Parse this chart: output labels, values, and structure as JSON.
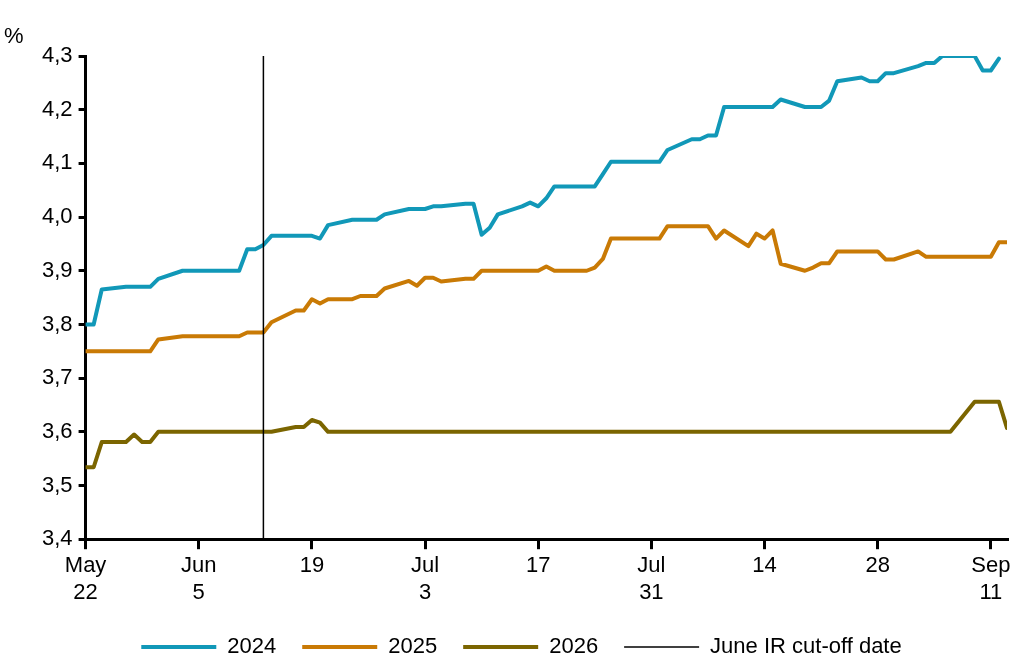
{
  "chart_data": {
    "type": "line",
    "ylabel": "%",
    "x": [
      "--05-22",
      "--05-23",
      "--05-24",
      "--05-27",
      "--05-28",
      "--05-29",
      "--05-30",
      "--05-31",
      "--06-03",
      "--06-04",
      "--06-05",
      "--06-06",
      "--06-07",
      "--06-10",
      "--06-11",
      "--06-12",
      "--06-13",
      "--06-14",
      "--06-17",
      "--06-18",
      "--06-19",
      "--06-20",
      "--06-21",
      "--06-24",
      "--06-25",
      "--06-26",
      "--06-27",
      "--06-28",
      "--07-01",
      "--07-02",
      "--07-03",
      "--07-04",
      "--07-05",
      "--07-08",
      "--07-09",
      "--07-10",
      "--07-11",
      "--07-12",
      "--07-15",
      "--07-16",
      "--07-17",
      "--07-18",
      "--07-19",
      "--07-22",
      "--07-23",
      "--07-24",
      "--07-25",
      "--07-26",
      "--07-29",
      "--07-30",
      "--07-31",
      "--08-01",
      "--08-02",
      "--08-05",
      "--08-06",
      "--08-07",
      "--08-08",
      "--08-09",
      "--08-12",
      "--08-13",
      "--08-14",
      "--08-15",
      "--08-16",
      "--08-19",
      "--08-20",
      "--08-21",
      "--08-22",
      "--08-23",
      "--08-26",
      "--08-27",
      "--08-28",
      "--08-29",
      "--08-30",
      "--09-02",
      "--09-03",
      "--09-04",
      "--09-05",
      "--09-06",
      "--09-09",
      "--09-10",
      "--09-11",
      "--09-12",
      "--09-13"
    ],
    "series": [
      {
        "name": "2024",
        "color": "#1198b8",
        "values": [
          3.8,
          3.8,
          3.865,
          3.87,
          3.87,
          3.87,
          3.87,
          3.885,
          3.9,
          3.9,
          3.9,
          3.9,
          3.9,
          3.9,
          3.94,
          3.94,
          3.948,
          3.965,
          3.965,
          3.965,
          3.965,
          3.96,
          3.985,
          3.995,
          3.995,
          3.995,
          3.995,
          4.005,
          4.015,
          4.015,
          4.015,
          4.02,
          4.02,
          4.025,
          4.025,
          3.967,
          3.98,
          4.005,
          4.02,
          4.027,
          4.02,
          4.035,
          4.057,
          4.057,
          4.057,
          4.057,
          4.08,
          4.103,
          4.103,
          4.103,
          4.103,
          4.103,
          4.125,
          4.145,
          4.145,
          4.152,
          4.152,
          4.205,
          4.205,
          4.205,
          4.205,
          4.205,
          4.219,
          4.205,
          4.205,
          4.205,
          4.217,
          4.253,
          4.26,
          4.253,
          4.253,
          4.268,
          4.268,
          4.281,
          4.287,
          4.287,
          4.3,
          4.3,
          4.3,
          4.273,
          4.273,
          4.295,
          null
        ]
      },
      {
        "name": "2025",
        "color": "#c97a05",
        "values": [
          3.75,
          3.75,
          3.75,
          3.75,
          3.75,
          3.75,
          3.75,
          3.772,
          3.778,
          3.778,
          3.778,
          3.778,
          3.778,
          3.778,
          3.785,
          3.785,
          3.785,
          3.804,
          3.826,
          3.826,
          3.847,
          3.839,
          3.847,
          3.847,
          3.853,
          3.853,
          3.853,
          3.867,
          3.881,
          3.872,
          3.887,
          3.887,
          3.88,
          3.885,
          3.885,
          3.9,
          3.9,
          3.9,
          3.9,
          3.9,
          3.9,
          3.908,
          3.9,
          3.9,
          3.9,
          3.906,
          3.922,
          3.96,
          3.96,
          3.96,
          3.96,
          3.96,
          3.983,
          3.983,
          3.983,
          3.983,
          3.96,
          3.975,
          3.946,
          3.969,
          3.96,
          3.975,
          3.913,
          3.9,
          3.906,
          3.914,
          3.914,
          3.936,
          3.936,
          3.936,
          3.936,
          3.921,
          3.921,
          3.936,
          3.926,
          3.926,
          3.926,
          3.926,
          3.926,
          3.926,
          3.926,
          3.953,
          3.953
        ]
      },
      {
        "name": "2026",
        "color": "#7b6500",
        "values": [
          3.534,
          3.534,
          3.581,
          3.581,
          3.595,
          3.581,
          3.581,
          3.6,
          3.6,
          3.6,
          3.6,
          3.6,
          3.6,
          3.6,
          3.6,
          3.6,
          3.6,
          3.6,
          3.609,
          3.609,
          3.622,
          3.617,
          3.6,
          3.6,
          3.6,
          3.6,
          3.6,
          3.6,
          3.6,
          3.6,
          3.6,
          3.6,
          3.6,
          3.6,
          3.6,
          3.6,
          3.6,
          3.6,
          3.6,
          3.6,
          3.6,
          3.6,
          3.6,
          3.6,
          3.6,
          3.6,
          3.6,
          3.6,
          3.6,
          3.6,
          3.6,
          3.6,
          3.6,
          3.6,
          3.6,
          3.6,
          3.6,
          3.6,
          3.6,
          3.6,
          3.6,
          3.6,
          3.6,
          3.6,
          3.6,
          3.6,
          3.6,
          3.6,
          3.6,
          3.6,
          3.6,
          3.6,
          3.6,
          3.6,
          3.6,
          3.6,
          3.6,
          3.6,
          3.656,
          3.656,
          3.656,
          3.656,
          3.607
        ]
      }
    ],
    "xlim": [
      "--05-22",
      "--09-13"
    ],
    "xticks": [
      {
        "value": "--05-22",
        "label": "May 22"
      },
      {
        "value": "--06-05",
        "label": "Jun 5"
      },
      {
        "value": "--06-19",
        "label": "19"
      },
      {
        "value": "--07-03",
        "label": "Jul 3"
      },
      {
        "value": "--07-17",
        "label": "17"
      },
      {
        "value": "--07-31",
        "label": "Jul 31"
      },
      {
        "value": "--08-14",
        "label": "14"
      },
      {
        "value": "--08-28",
        "label": "28"
      },
      {
        "value": "--09-11",
        "label": "Sep 11"
      }
    ],
    "ylim": [
      3.4,
      4.3
    ],
    "yticks": [
      {
        "value": 3.4,
        "label": "3,4"
      },
      {
        "value": 3.5,
        "label": "3,5"
      },
      {
        "value": 3.6,
        "label": "3,6"
      },
      {
        "value": 3.7,
        "label": "3,7"
      },
      {
        "value": 3.8,
        "label": "3,8"
      },
      {
        "value": 3.9,
        "label": "3,9"
      },
      {
        "value": 4.0,
        "label": "4,0"
      },
      {
        "value": 4.1,
        "label": "4,1"
      },
      {
        "value": 4.2,
        "label": "4,2"
      },
      {
        "value": 4.3,
        "label": "4,3"
      }
    ],
    "ref_lines": [
      {
        "axis": "x",
        "value": "--06-13",
        "label": "June IR cut-off date",
        "color": "#000000",
        "line_style": "solid"
      }
    ],
    "grid": false,
    "legend": "bottom",
    "marker": "none",
    "line_style": "solid"
  }
}
